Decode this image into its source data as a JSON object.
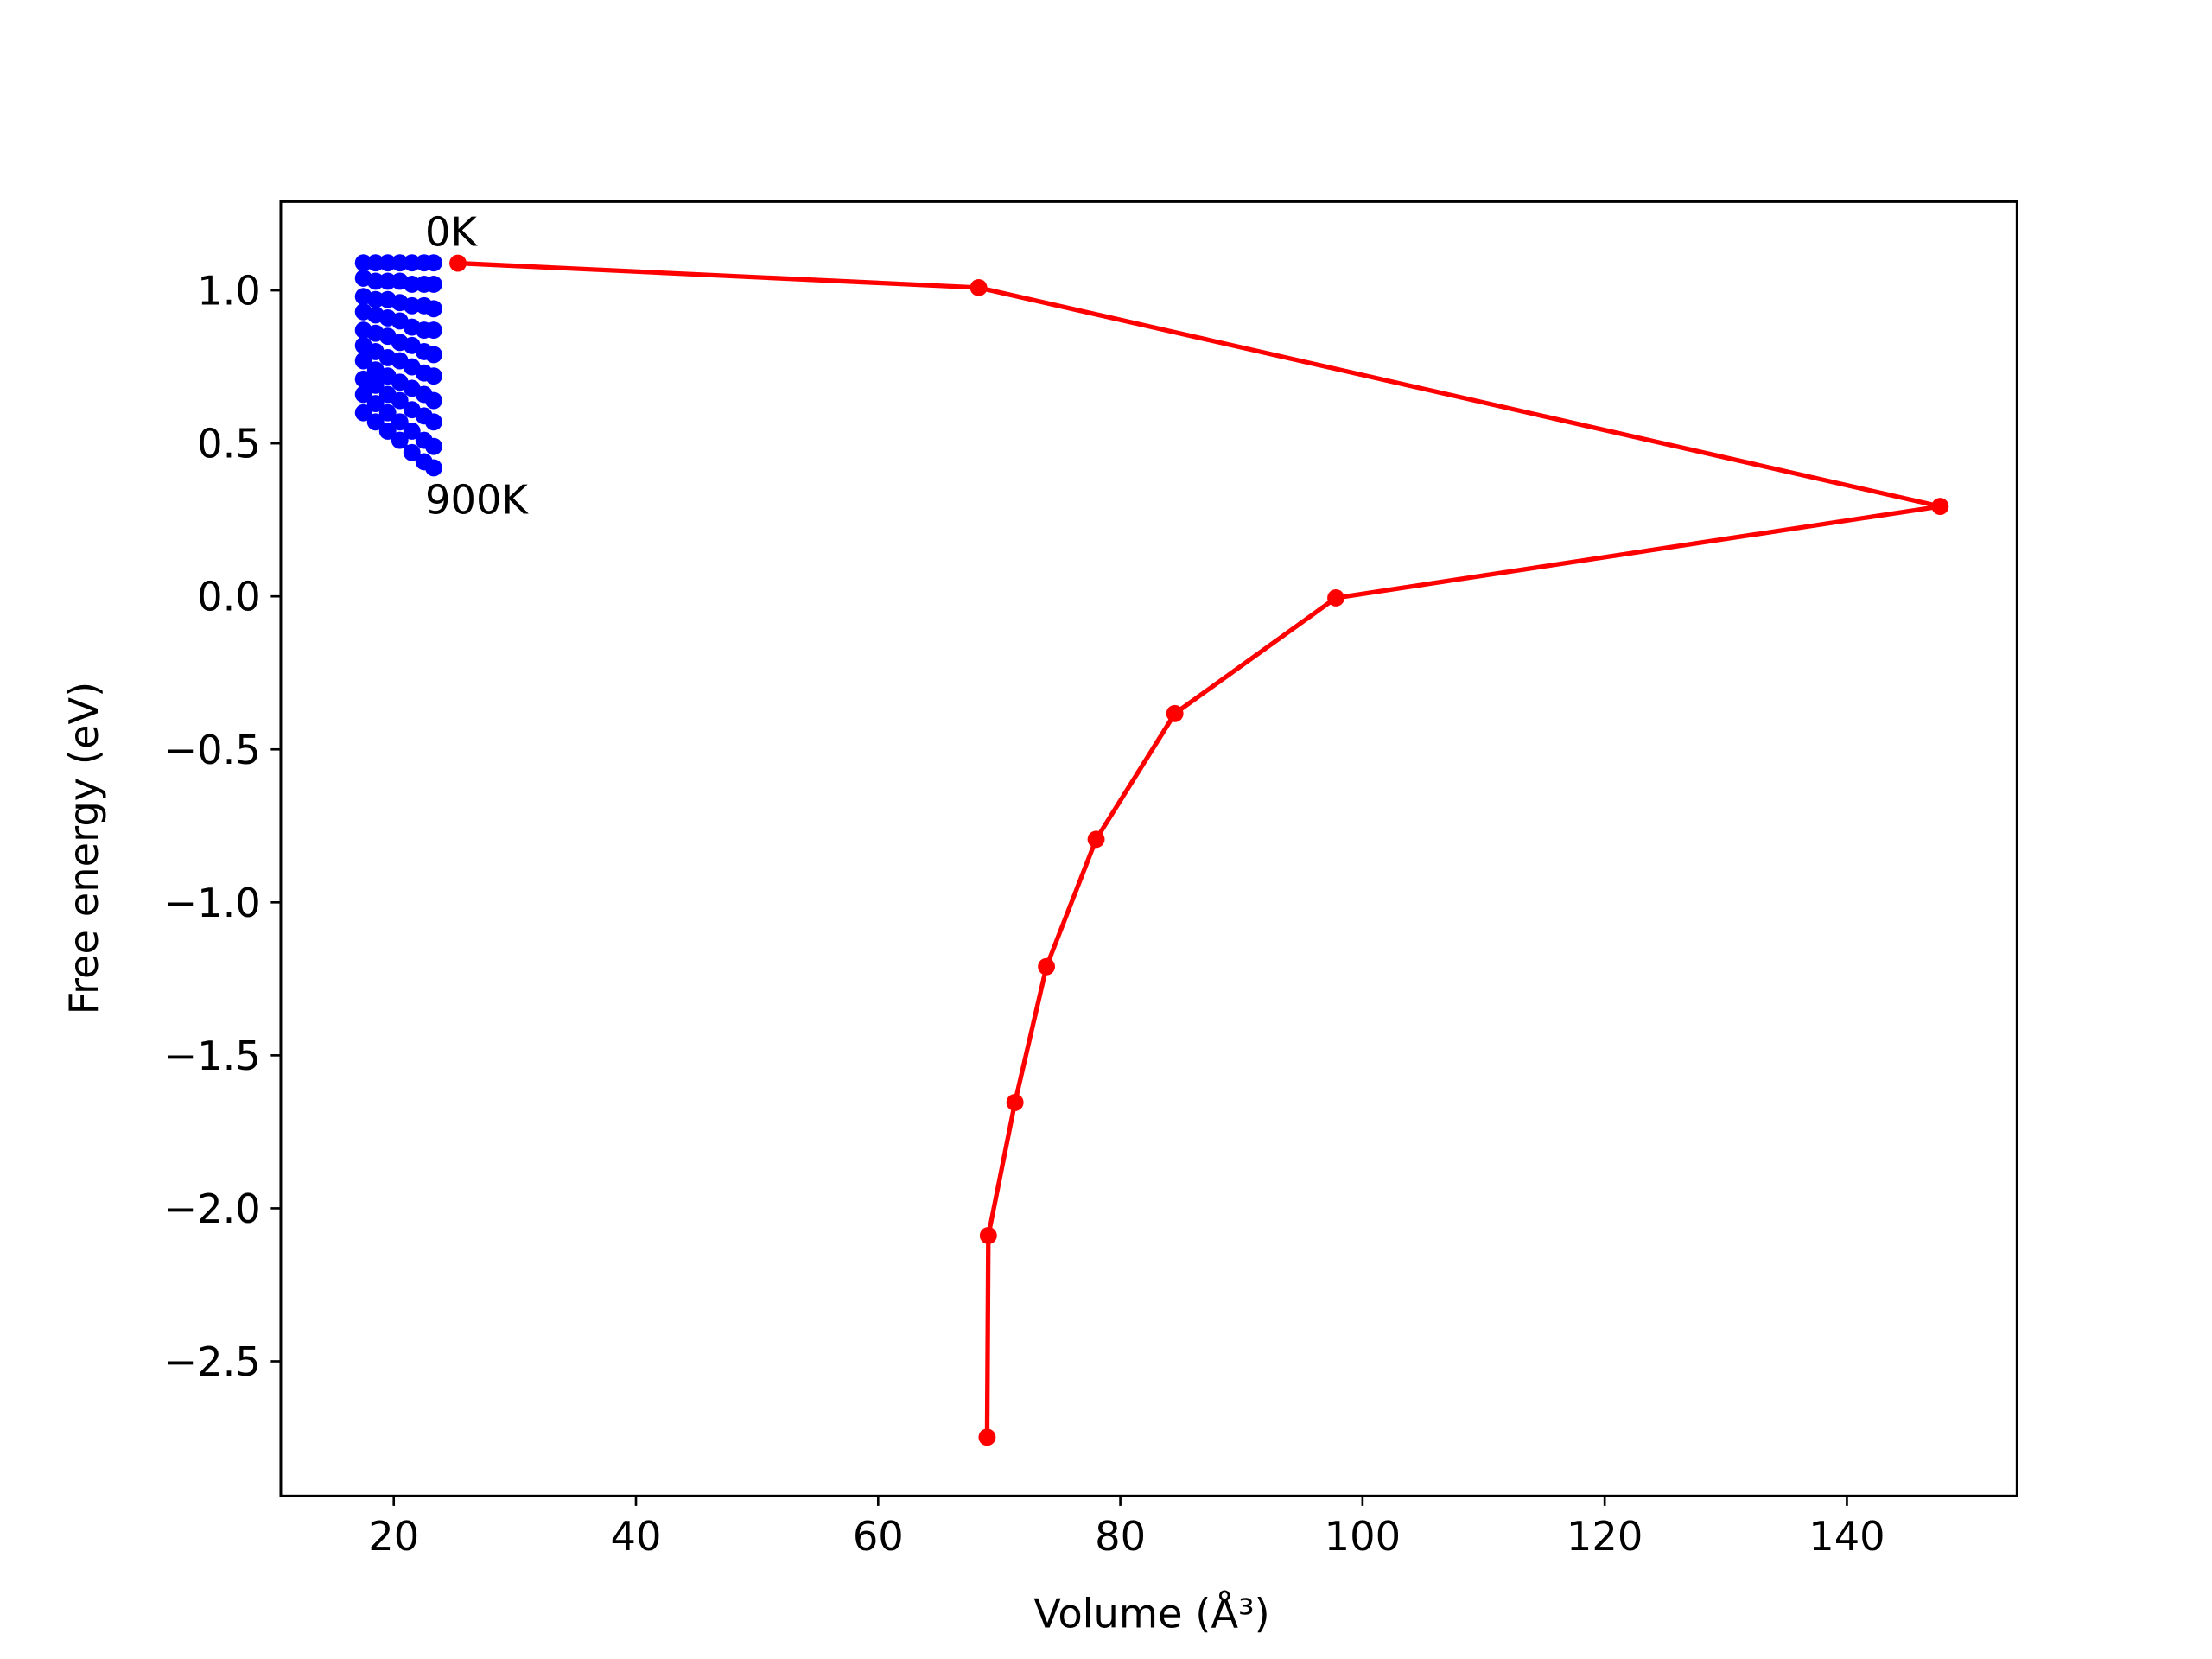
{
  "chart_data": {
    "type": "line",
    "xlabel": "Volume (Å³)",
    "ylabel": "Free energy (eV)",
    "xlim": [
      10.67,
      154.05
    ],
    "ylim": [
      -2.94,
      1.29
    ],
    "xticks": [
      20,
      40,
      60,
      80,
      100,
      120,
      140
    ],
    "yticks": [
      {
        "value": -2.5,
        "label": "−2.5"
      },
      {
        "value": -2.0,
        "label": "−2.0"
      },
      {
        "value": -1.5,
        "label": "−1.5"
      },
      {
        "value": -1.0,
        "label": "−1.0"
      },
      {
        "value": -0.5,
        "label": "−0.5"
      },
      {
        "value": 0.0,
        "label": "0.0"
      },
      0.5,
      {
        "value": 1.0,
        "label": "1.0"
      }
    ],
    "annotations": [
      "0K",
      "900K"
    ],
    "series": [
      {
        "color": "#ff0000",
        "x": [
          25.3,
          68.3,
          147.7,
          97.8,
          84.5,
          78.0,
          73.9,
          71.3,
          69.1,
          69.0
        ],
        "values": [
          1.089,
          1.009,
          0.294,
          -0.005,
          -0.383,
          -0.794,
          -1.21,
          -1.654,
          -2.089,
          -2.748
        ]
      },
      {
        "color": "#0000ff",
        "x": [
          17.5,
          18.5,
          19.5,
          20.5,
          21.5,
          22.5,
          23.3
        ],
        "values": [
          1.09,
          1.09,
          1.09,
          1.09,
          1.09,
          1.09,
          1.09
        ]
      },
      {
        "color": "#0000ff",
        "x": [
          17.5,
          18.5,
          19.5,
          20.5,
          21.5,
          22.5,
          23.3
        ],
        "values": [
          1.04,
          1.03,
          1.03,
          1.03,
          1.02,
          1.02,
          1.02
        ]
      },
      {
        "color": "#0000ff",
        "x": [
          17.5,
          18.5,
          19.5,
          20.5,
          21.5,
          22.5,
          23.3
        ],
        "values": [
          0.98,
          0.97,
          0.97,
          0.96,
          0.95,
          0.95,
          0.94
        ]
      },
      {
        "color": "#0000ff",
        "x": [
          17.5,
          18.5,
          19.5,
          20.5,
          21.5,
          22.5,
          23.3
        ],
        "values": [
          0.93,
          0.92,
          0.91,
          0.9,
          0.88,
          0.87,
          0.87
        ]
      },
      {
        "color": "#0000ff",
        "x": [
          17.5,
          18.5,
          19.5,
          20.5,
          21.5,
          22.5,
          23.3
        ],
        "values": [
          0.87,
          0.86,
          0.85,
          0.83,
          0.82,
          0.8,
          0.79
        ]
      },
      {
        "color": "#0000ff",
        "x": [
          17.5,
          18.5,
          19.5,
          20.5,
          21.5,
          22.5,
          23.3
        ],
        "values": [
          0.82,
          0.8,
          0.78,
          0.77,
          0.75,
          0.73,
          0.72
        ]
      },
      {
        "color": "#0000ff",
        "x": [
          17.5,
          18.5,
          19.5,
          20.5,
          21.5,
          22.5,
          23.3
        ],
        "values": [
          0.77,
          0.74,
          0.72,
          0.7,
          0.68,
          0.66,
          0.64
        ]
      },
      {
        "color": "#0000ff",
        "x": [
          17.5,
          18.5,
          19.5,
          20.5,
          21.5,
          22.5,
          23.3
        ],
        "values": [
          0.71,
          0.69,
          0.66,
          0.64,
          0.61,
          0.59,
          0.57
        ]
      },
      {
        "color": "#0000ff",
        "x": [
          17.5,
          18.5,
          19.5,
          20.5,
          21.5,
          22.5,
          23.3
        ],
        "values": [
          0.66,
          0.63,
          0.6,
          0.57,
          0.54,
          0.51,
          0.49
        ]
      },
      {
        "color": "#0000ff",
        "x": [
          17.5,
          18.5,
          19.5,
          20.5,
          21.5,
          22.5,
          23.3
        ],
        "values": [
          0.6,
          0.57,
          0.54,
          0.51,
          0.47,
          0.44,
          0.42
        ]
      }
    ]
  }
}
